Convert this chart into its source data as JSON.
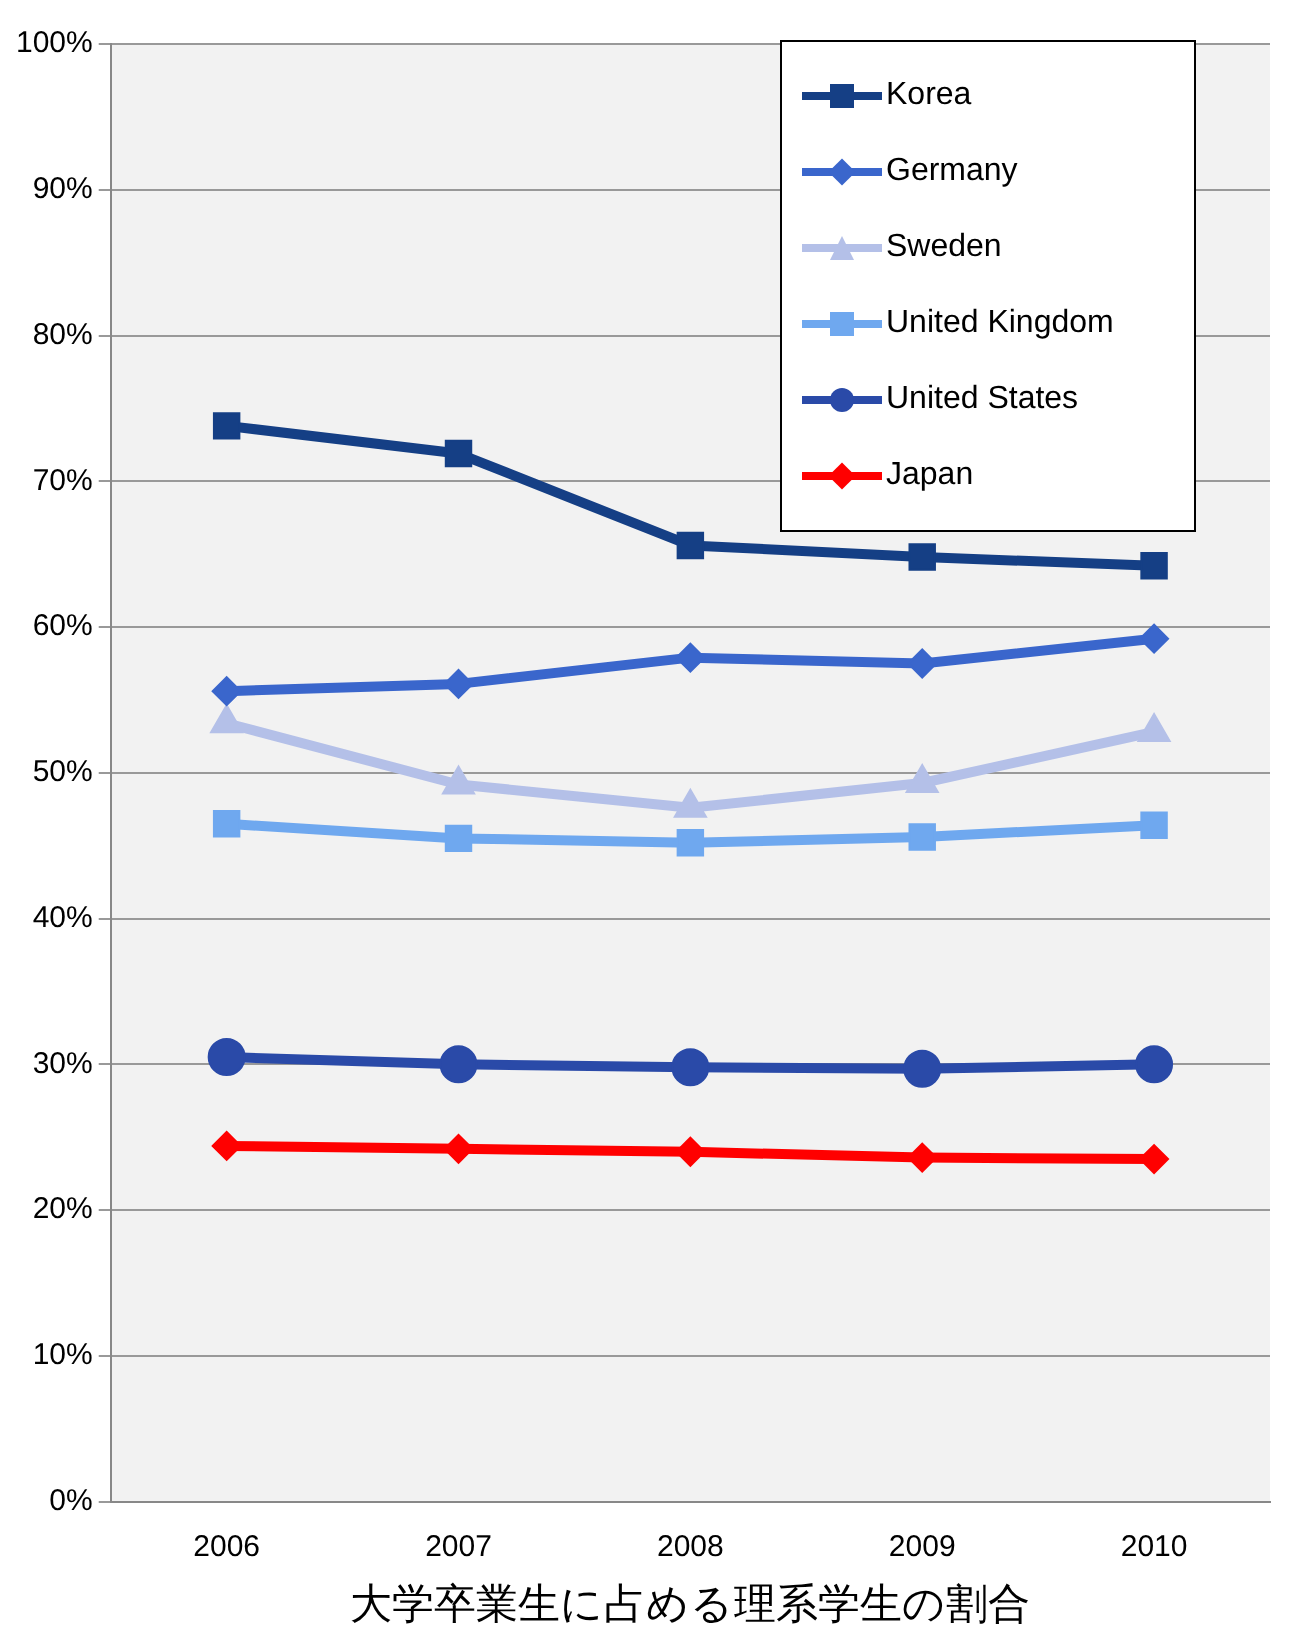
{
  "chart_data": {
    "type": "line",
    "xlabel": "大学卒業生に占める理系学生の割合",
    "categories": [
      "2006",
      "2007",
      "2008",
      "2009",
      "2010"
    ],
    "series": [
      {
        "name": "Korea",
        "color": "#153f85",
        "marker": "square",
        "values": [
          73.8,
          71.9,
          65.6,
          64.8,
          64.2
        ]
      },
      {
        "name": "Germany",
        "color": "#3a66cc",
        "marker": "diamond",
        "values": [
          55.6,
          56.1,
          57.9,
          57.5,
          59.2
        ]
      },
      {
        "name": "Sweden",
        "color": "#b4c0e8",
        "marker": "triangle",
        "values": [
          53.4,
          49.2,
          47.6,
          49.3,
          52.8
        ]
      },
      {
        "name": "United Kingdom",
        "color": "#6fa8ef",
        "marker": "square",
        "values": [
          46.5,
          45.5,
          45.2,
          45.6,
          46.4
        ]
      },
      {
        "name": "United States",
        "color": "#2a4aa8",
        "marker": "circle",
        "values": [
          30.5,
          30.0,
          29.8,
          29.7,
          30.0
        ]
      },
      {
        "name": "Japan",
        "color": "#ff0000",
        "marker": "diamond",
        "values": [
          24.4,
          24.2,
          24.0,
          23.6,
          23.5
        ]
      }
    ],
    "ylim": [
      0,
      100
    ],
    "yticks": [
      {
        "value": 0,
        "label": "0%"
      },
      {
        "value": 10,
        "label": "10%"
      },
      {
        "value": 20,
        "label": "20%"
      },
      {
        "value": 30,
        "label": "30%"
      },
      {
        "value": 40,
        "label": "40%"
      },
      {
        "value": 50,
        "label": "50%"
      },
      {
        "value": 60,
        "label": "60%"
      },
      {
        "value": 70,
        "label": "70%"
      },
      {
        "value": 80,
        "label": "80%"
      },
      {
        "value": 90,
        "label": "90%"
      },
      {
        "value": 100,
        "label": "100%"
      }
    ],
    "grid": "y",
    "legend": "top right",
    "line_style": "solid"
  }
}
